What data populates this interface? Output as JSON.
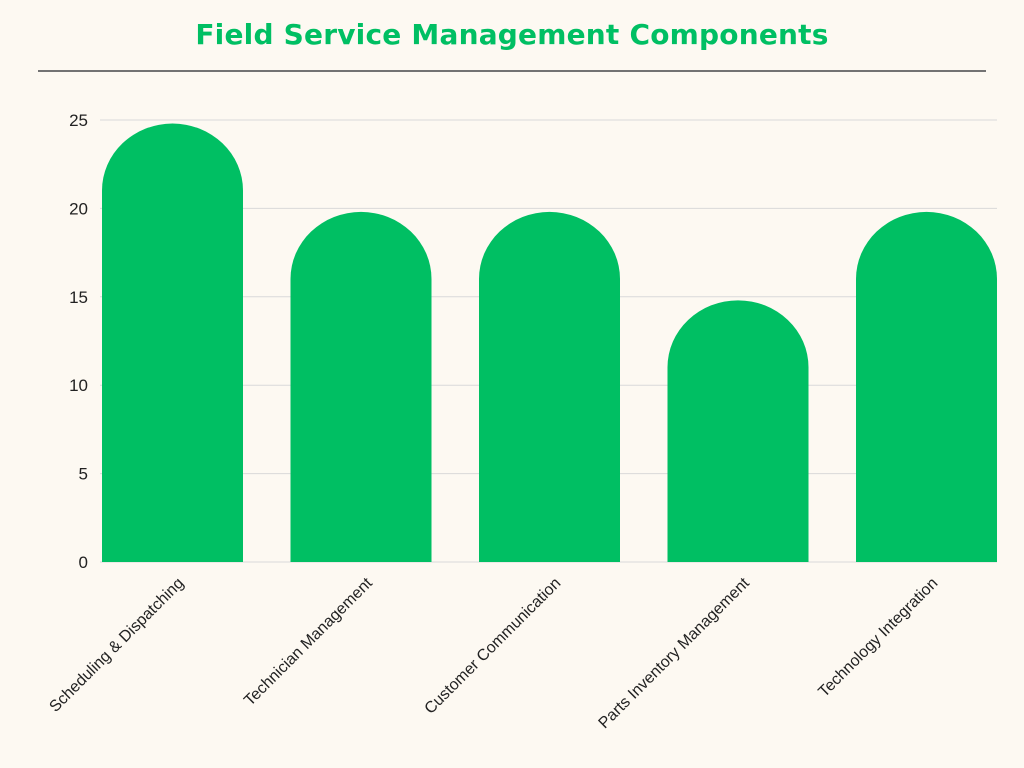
{
  "chart_data": {
    "type": "bar",
    "title": "Field Service Management Components",
    "categories": [
      "Scheduling & Dispatching",
      "Technician Management",
      "Customer Communication",
      "Parts Inventory Management",
      "Technology Integration"
    ],
    "values": [
      25,
      20,
      20,
      15,
      20
    ],
    "xlabel": "",
    "ylabel": "",
    "ylim": [
      0,
      25
    ],
    "yticks": [
      0,
      5,
      10,
      15,
      20,
      25
    ],
    "grid": true,
    "legend": "none",
    "bar_shape": "rounded-top",
    "colors": {
      "bar": "#00bf63",
      "title": "#00bf63",
      "grid": "#d9d9d9",
      "background": "#fdf9f2",
      "rule": "#737373"
    }
  }
}
